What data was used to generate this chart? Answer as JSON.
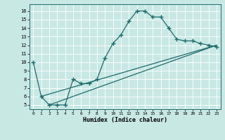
{
  "xlabel": "Humidex (Indice chaleur)",
  "ylabel": "",
  "xlim": [
    -0.5,
    23.5
  ],
  "ylim": [
    4.5,
    16.8
  ],
  "yticks": [
    5,
    6,
    7,
    8,
    9,
    10,
    11,
    12,
    13,
    14,
    15,
    16
  ],
  "xticks": [
    0,
    1,
    2,
    3,
    4,
    5,
    6,
    7,
    8,
    9,
    10,
    11,
    12,
    13,
    14,
    15,
    16,
    17,
    18,
    19,
    20,
    21,
    22,
    23
  ],
  "xtick_labels": [
    "0",
    "1",
    "2",
    "3",
    "4",
    "5",
    "6",
    "7",
    "8",
    "9",
    "10",
    "11",
    "12",
    "13",
    "14",
    "15",
    "16",
    "17",
    "18",
    "19",
    "20",
    "21",
    "22",
    "23"
  ],
  "bg_color": "#c8e8e4",
  "line_color": "#1e6b6b",
  "grid_color": "#e0f0f0",
  "line1_x": [
    0,
    1,
    2,
    3,
    4,
    5,
    6,
    7,
    8,
    9,
    10,
    11,
    12,
    13,
    14,
    15,
    16,
    17,
    18,
    19,
    20,
    21,
    22,
    23
  ],
  "line1_y": [
    10,
    6,
    5,
    5,
    5,
    8,
    7.5,
    7.5,
    8,
    10.5,
    12.2,
    13.2,
    14.8,
    16.0,
    16.0,
    15.3,
    15.3,
    14.0,
    12.7,
    12.5,
    12.5,
    12.2,
    12.0,
    11.8
  ],
  "line2_x": [
    1,
    23
  ],
  "line2_y": [
    6.0,
    12.0
  ],
  "line3_x": [
    2,
    23
  ],
  "line3_y": [
    5.0,
    12.0
  ],
  "marker": "+",
  "marker_size": 4,
  "linewidth": 0.9
}
